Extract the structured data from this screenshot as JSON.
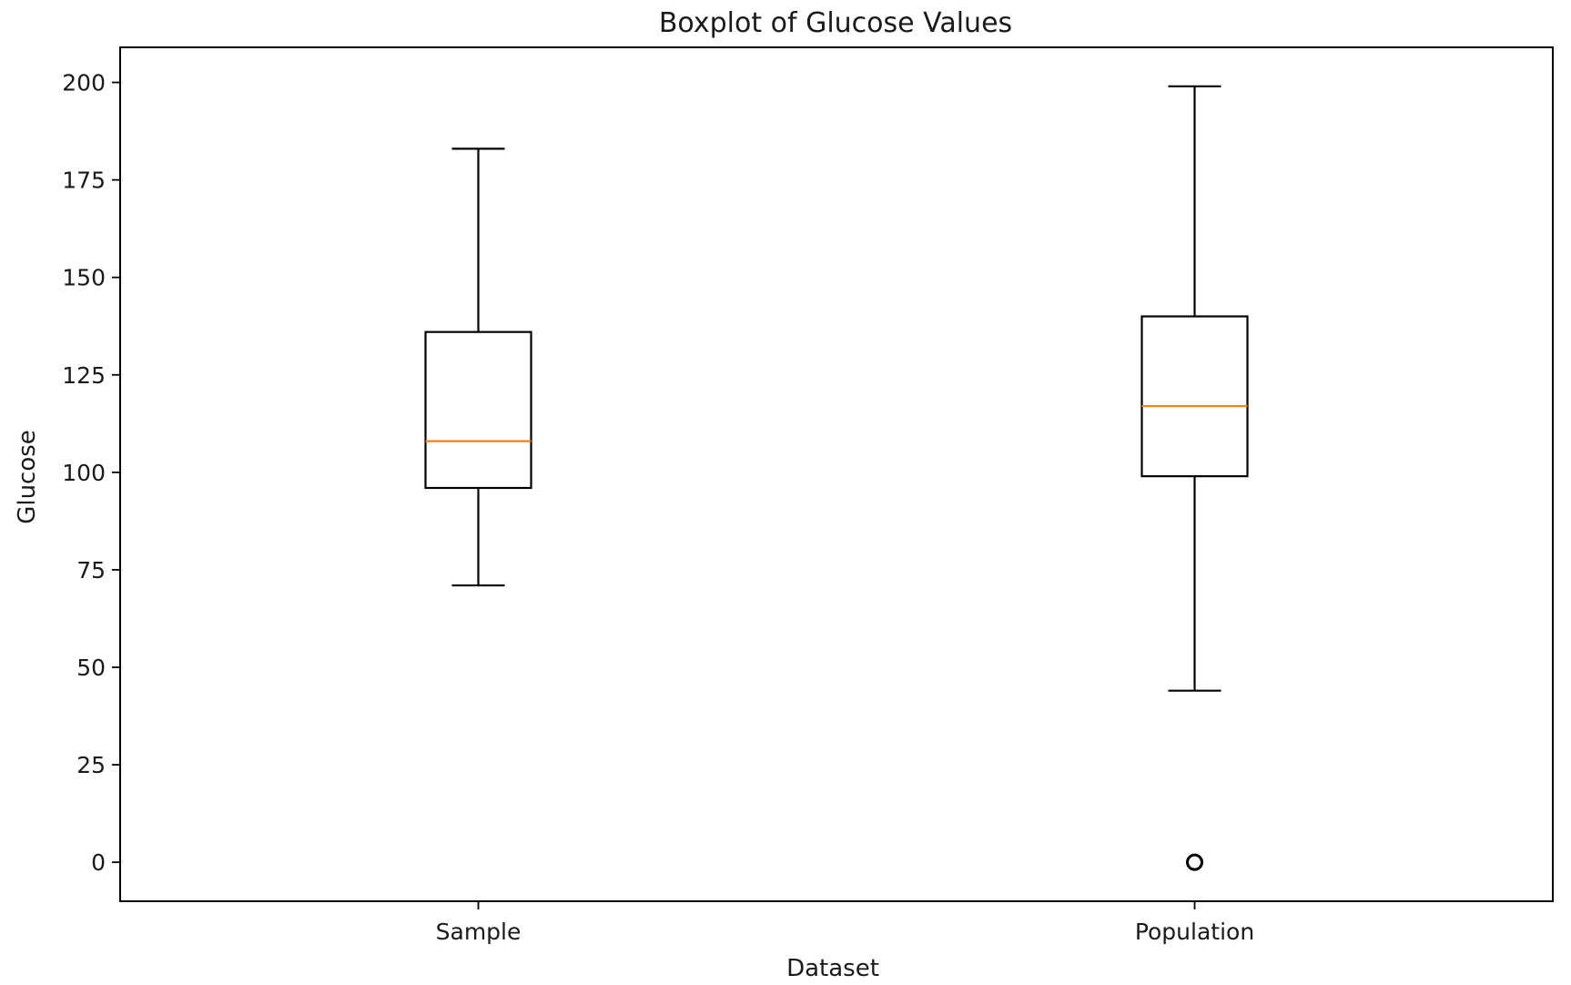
{
  "chart_data": {
    "type": "boxplot",
    "title": "Boxplot of Glucose Values",
    "xlabel": "Dataset",
    "ylabel": "Glucose",
    "ylim": [
      -10,
      209
    ],
    "y_ticks": [
      0,
      25,
      50,
      75,
      100,
      125,
      150,
      175,
      200
    ],
    "grid": false,
    "categories": [
      "Sample",
      "Population"
    ],
    "boxes": [
      {
        "category": "Sample",
        "whisker_low": 71,
        "q1": 96,
        "median": 108,
        "q3": 136,
        "whisker_high": 183,
        "outliers": []
      },
      {
        "category": "Population",
        "whisker_low": 44,
        "q1": 99,
        "median": 117,
        "q3": 140,
        "whisker_high": 199,
        "outliers": [
          0
        ]
      }
    ],
    "colors": {
      "box": "#000000",
      "median": "#ff7f0e",
      "axes": "#000000"
    }
  }
}
